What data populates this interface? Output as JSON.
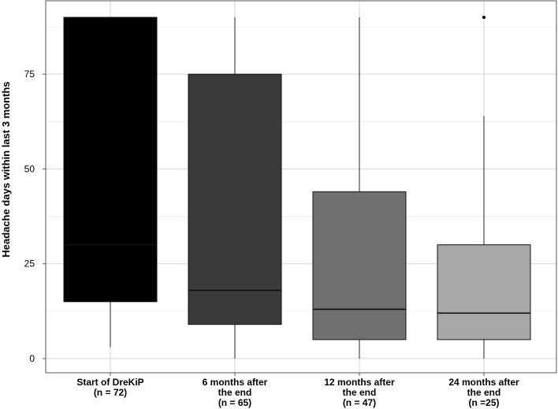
{
  "chart_data": {
    "type": "boxplot",
    "ylabel": "Headache days within last 3 months",
    "ylim": [
      0,
      90
    ],
    "yticks": [
      0,
      25,
      50,
      75
    ],
    "grid": true,
    "categories": [
      {
        "lines": [
          "Start of DreKiP",
          "(n = 72)"
        ],
        "min": 3,
        "q1": 15,
        "median": 30,
        "q3": 90,
        "max": 90,
        "outliers": [],
        "color": "#000000"
      },
      {
        "lines": [
          "6 months after",
          "the end",
          "(n = 65)"
        ],
        "min": 0,
        "q1": 9,
        "median": 18,
        "q3": 75,
        "max": 90,
        "outliers": [],
        "color": "#3a3a3a"
      },
      {
        "lines": [
          "12 months after",
          "the end",
          "(n = 47)"
        ],
        "min": 0,
        "q1": 5,
        "median": 13,
        "q3": 44,
        "max": 90,
        "outliers": [],
        "color": "#707070"
      },
      {
        "lines": [
          "24 months after",
          "the end",
          "(n =25)"
        ],
        "min": 0,
        "q1": 5,
        "median": 12,
        "q3": 30,
        "max": 64,
        "outliers": [
          90
        ],
        "color": "#a8a8a8"
      }
    ]
  }
}
